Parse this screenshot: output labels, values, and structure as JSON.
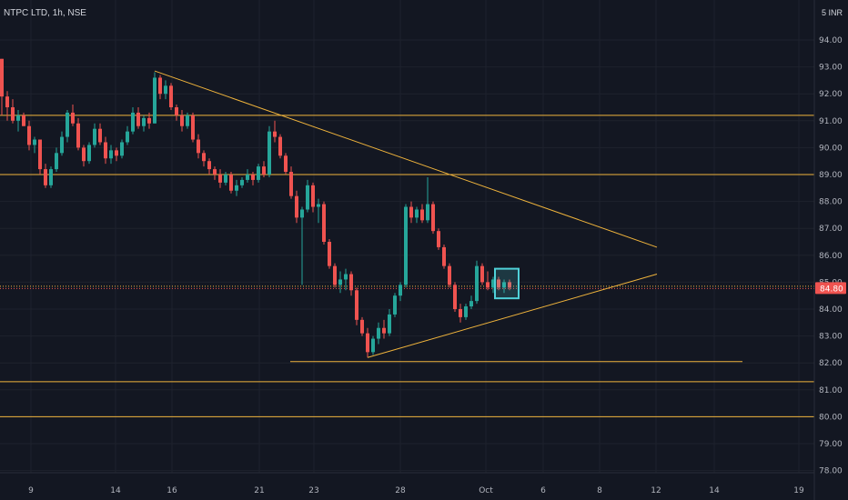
{
  "header": {
    "symbol": "NTPC LTD, 1h, NSE",
    "currency_prefix": "5",
    "currency": "INR"
  },
  "colors": {
    "background": "#131722",
    "grid": "#1e222d",
    "up": "#26a69a",
    "down": "#ef5350",
    "drawing": "#f0b43c",
    "text": "#b2b5be",
    "price_badge": "#ef5350",
    "box": "#4fd1d9"
  },
  "chart_data": {
    "type": "candlestick",
    "title": "NTPC LTD, 1h, NSE",
    "ylabel": "INR",
    "ylim": [
      78.0,
      95.0
    ],
    "grid": true,
    "y_ticks": [
      "94.00",
      "93.00",
      "92.00",
      "91.00",
      "90.00",
      "89.00",
      "88.00",
      "87.00",
      "86.00",
      "85.00",
      "84.00",
      "83.00",
      "82.00",
      "81.00",
      "80.00",
      "79.00",
      "78.00"
    ],
    "x_ticks": [
      "9",
      "14",
      "16",
      "21",
      "23",
      "28",
      "Oct",
      "6",
      "8",
      "12",
      "14",
      "19"
    ],
    "last_price": "84.80",
    "horizontal_levels": [
      91.2,
      89.0,
      84.85,
      81.3,
      80.0
    ],
    "support_segment": {
      "value": 82.05,
      "from_tick": "23",
      "to_tick": "14"
    },
    "trendlines": [
      {
        "name": "upper",
        "from": {
          "bar": 28,
          "price": 92.85
        },
        "to": {
          "bar": 120,
          "price": 86.3
        }
      },
      {
        "name": "lower",
        "from": {
          "bar": 67,
          "price": 82.2
        },
        "to": {
          "bar": 120,
          "price": 85.3
        }
      }
    ],
    "candles": [
      [
        93.3,
        93.3,
        91.2,
        91.9
      ],
      [
        91.9,
        92.1,
        91.0,
        91.5
      ],
      [
        91.5,
        91.8,
        90.9,
        91.0
      ],
      [
        91.0,
        91.4,
        90.6,
        91.2
      ],
      [
        91.2,
        91.3,
        90.8,
        90.8
      ],
      [
        90.8,
        91.0,
        89.9,
        90.1
      ],
      [
        90.1,
        90.4,
        89.8,
        90.3
      ],
      [
        90.3,
        90.3,
        89.0,
        89.2
      ],
      [
        89.2,
        89.4,
        88.5,
        88.6
      ],
      [
        88.6,
        89.3,
        88.5,
        89.2
      ],
      [
        89.2,
        90.0,
        89.1,
        89.8
      ],
      [
        89.8,
        90.6,
        89.7,
        90.4
      ],
      [
        90.4,
        91.4,
        90.2,
        91.3
      ],
      [
        91.3,
        91.6,
        90.8,
        90.9
      ],
      [
        90.9,
        91.1,
        89.9,
        90.0
      ],
      [
        90.0,
        90.1,
        89.3,
        89.5
      ],
      [
        89.5,
        90.2,
        89.4,
        90.1
      ],
      [
        90.1,
        90.9,
        90.0,
        90.7
      ],
      [
        90.7,
        90.9,
        90.1,
        90.2
      ],
      [
        90.2,
        90.4,
        89.4,
        89.6
      ],
      [
        89.6,
        90.1,
        89.4,
        89.9
      ],
      [
        89.9,
        90.0,
        89.5,
        89.7
      ],
      [
        89.7,
        90.3,
        89.6,
        90.2
      ],
      [
        90.2,
        90.8,
        90.1,
        90.6
      ],
      [
        90.6,
        91.5,
        90.5,
        91.3
      ],
      [
        91.3,
        91.5,
        90.7,
        90.8
      ],
      [
        90.8,
        91.2,
        90.6,
        91.1
      ],
      [
        91.1,
        91.3,
        90.7,
        90.9
      ],
      [
        90.9,
        92.8,
        90.9,
        92.6
      ],
      [
        92.6,
        92.7,
        91.8,
        92.0
      ],
      [
        92.0,
        92.5,
        91.8,
        92.3
      ],
      [
        92.3,
        92.4,
        91.4,
        91.5
      ],
      [
        91.5,
        91.6,
        91.0,
        91.2
      ],
      [
        91.2,
        91.4,
        90.6,
        90.8
      ],
      [
        90.8,
        91.3,
        90.7,
        91.2
      ],
      [
        91.2,
        91.3,
        90.2,
        90.3
      ],
      [
        90.3,
        90.5,
        89.6,
        89.8
      ],
      [
        89.8,
        89.9,
        89.3,
        89.5
      ],
      [
        89.5,
        89.6,
        89.0,
        89.2
      ],
      [
        89.2,
        89.3,
        88.8,
        89.0
      ],
      [
        89.0,
        89.2,
        88.5,
        88.7
      ],
      [
        88.7,
        89.1,
        88.6,
        89.0
      ],
      [
        89.0,
        89.1,
        88.3,
        88.4
      ],
      [
        88.4,
        88.8,
        88.2,
        88.6
      ],
      [
        88.6,
        88.9,
        88.5,
        88.8
      ],
      [
        88.8,
        89.2,
        88.7,
        89.0
      ],
      [
        89.0,
        89.1,
        88.6,
        88.8
      ],
      [
        88.8,
        89.4,
        88.7,
        89.3
      ],
      [
        89.3,
        89.5,
        88.9,
        89.0
      ],
      [
        89.0,
        90.8,
        88.9,
        90.6
      ],
      [
        90.6,
        91.0,
        90.2,
        90.4
      ],
      [
        90.4,
        90.5,
        89.6,
        89.7
      ],
      [
        89.7,
        89.8,
        89.0,
        89.1
      ],
      [
        89.1,
        89.3,
        88.1,
        88.2
      ],
      [
        88.2,
        88.4,
        87.2,
        87.4
      ],
      [
        87.4,
        87.8,
        84.9,
        87.7
      ],
      [
        87.7,
        88.8,
        87.6,
        88.6
      ],
      [
        88.6,
        88.7,
        87.6,
        87.8
      ],
      [
        87.8,
        88.1,
        87.2,
        87.9
      ],
      [
        87.9,
        88.0,
        86.4,
        86.5
      ],
      [
        86.5,
        86.6,
        85.5,
        85.6
      ],
      [
        85.6,
        85.7,
        84.8,
        84.9
      ],
      [
        84.9,
        85.4,
        84.6,
        85.1
      ],
      [
        85.1,
        85.5,
        84.7,
        85.3
      ],
      [
        85.3,
        85.4,
        84.5,
        84.7
      ],
      [
        84.7,
        84.8,
        83.4,
        83.6
      ],
      [
        83.6,
        83.7,
        83.0,
        83.1
      ],
      [
        83.1,
        83.3,
        82.2,
        82.4
      ],
      [
        82.4,
        83.0,
        82.3,
        82.9
      ],
      [
        82.9,
        83.5,
        82.7,
        83.3
      ],
      [
        83.3,
        83.6,
        82.9,
        83.1
      ],
      [
        83.1,
        84.0,
        83.0,
        83.8
      ],
      [
        83.8,
        84.6,
        83.7,
        84.5
      ],
      [
        84.5,
        85.0,
        84.3,
        84.9
      ],
      [
        84.9,
        87.9,
        84.8,
        87.8
      ],
      [
        87.8,
        88.0,
        87.2,
        87.4
      ],
      [
        87.4,
        87.8,
        87.2,
        87.7
      ],
      [
        87.7,
        87.9,
        87.2,
        87.3
      ],
      [
        87.3,
        88.9,
        87.2,
        87.9
      ],
      [
        87.9,
        88.0,
        86.8,
        86.9
      ],
      [
        86.9,
        87.0,
        86.2,
        86.3
      ],
      [
        86.3,
        86.4,
        85.5,
        85.6
      ],
      [
        85.6,
        85.7,
        84.8,
        84.9
      ],
      [
        84.9,
        85.0,
        83.9,
        84.0
      ],
      [
        84.0,
        84.2,
        83.5,
        83.7
      ],
      [
        83.7,
        84.2,
        83.6,
        84.1
      ],
      [
        84.1,
        84.5,
        84.0,
        84.3
      ],
      [
        84.3,
        85.8,
        84.2,
        85.6
      ],
      [
        85.6,
        85.7,
        84.9,
        85.0
      ],
      [
        85.0,
        85.4,
        84.7,
        84.8
      ],
      [
        84.8,
        85.2,
        84.6,
        85.1
      ],
      [
        85.1,
        85.2,
        84.7,
        84.8
      ],
      [
        84.8,
        85.1,
        84.6,
        85.0
      ],
      [
        85.0,
        85.1,
        84.7,
        84.8
      ]
    ],
    "consolidation_box": {
      "from_bar": 91,
      "to_bar": 94,
      "low": 84.4,
      "high": 85.5
    }
  }
}
